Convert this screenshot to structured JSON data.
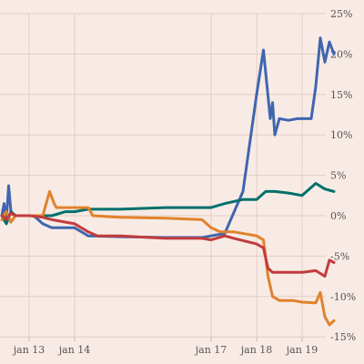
{
  "chart_data": {
    "type": "line",
    "title": "",
    "xlabel": "",
    "ylabel": "",
    "ylim": [
      -0.15,
      0.25
    ],
    "grid": true,
    "x_ticks": [
      {
        "t": 13.0,
        "label": "jan 13"
      },
      {
        "t": 14.0,
        "label": "jan 14"
      },
      {
        "t": 17.0,
        "label": "jan 17"
      },
      {
        "t": 18.0,
        "label": "jan 18"
      },
      {
        "t": 19.0,
        "label": "jan 19"
      }
    ],
    "y_ticks": [
      {
        "v": 0.25,
        "label": "25%"
      },
      {
        "v": 0.2,
        "label": "20%"
      },
      {
        "v": 0.15,
        "label": "15%"
      },
      {
        "v": 0.1,
        "label": "10%"
      },
      {
        "v": 0.05,
        "label": "5%"
      },
      {
        "v": 0.0,
        "label": "0%"
      },
      {
        "v": -0.05,
        "label": "-5%"
      },
      {
        "v": -0.1,
        "label": "-10%"
      },
      {
        "v": -0.15,
        "label": "-15%"
      }
    ],
    "series": [
      {
        "color": "#3f66b0",
        "points": [
          [
            12.4,
            0.0
          ],
          [
            12.45,
            0.015
          ],
          [
            12.5,
            -0.005
          ],
          [
            12.55,
            0.037
          ],
          [
            12.6,
            0.005
          ],
          [
            12.7,
            0.0
          ],
          [
            13.0,
            0.0
          ],
          [
            13.1,
            0.0
          ],
          [
            13.3,
            -0.01
          ],
          [
            13.5,
            -0.015
          ],
          [
            13.8,
            -0.015
          ],
          [
            14.0,
            -0.015
          ],
          [
            14.3,
            -0.025
          ],
          [
            15.0,
            -0.026
          ],
          [
            16.0,
            -0.027
          ],
          [
            16.8,
            -0.027
          ],
          [
            17.0,
            -0.025
          ],
          [
            17.3,
            -0.022
          ],
          [
            17.7,
            0.03
          ],
          [
            18.0,
            0.15
          ],
          [
            18.15,
            0.205
          ],
          [
            18.3,
            0.12
          ],
          [
            18.35,
            0.14
          ],
          [
            18.4,
            0.1
          ],
          [
            18.5,
            0.12
          ],
          [
            18.7,
            0.118
          ],
          [
            18.9,
            0.12
          ],
          [
            19.0,
            0.12
          ],
          [
            19.2,
            0.12
          ],
          [
            19.3,
            0.16
          ],
          [
            19.4,
            0.22
          ],
          [
            19.5,
            0.19
          ],
          [
            19.6,
            0.215
          ],
          [
            19.7,
            0.2
          ]
        ]
      },
      {
        "color": "#00706b",
        "points": [
          [
            12.4,
            0.0
          ],
          [
            12.5,
            -0.01
          ],
          [
            12.6,
            0.005
          ],
          [
            12.7,
            0.0
          ],
          [
            13.0,
            0.0
          ],
          [
            13.3,
            0.0
          ],
          [
            13.5,
            0.0
          ],
          [
            13.8,
            0.005
          ],
          [
            14.0,
            0.005
          ],
          [
            14.3,
            0.008
          ],
          [
            15.0,
            0.008
          ],
          [
            16.0,
            0.01
          ],
          [
            16.8,
            0.01
          ],
          [
            17.0,
            0.01
          ],
          [
            17.3,
            0.015
          ],
          [
            17.7,
            0.02
          ],
          [
            18.0,
            0.02
          ],
          [
            18.2,
            0.03
          ],
          [
            18.4,
            0.03
          ],
          [
            18.7,
            0.028
          ],
          [
            19.0,
            0.025
          ],
          [
            19.3,
            0.04
          ],
          [
            19.5,
            0.033
          ],
          [
            19.7,
            0.03
          ]
        ]
      },
      {
        "color": "#e0822c",
        "points": [
          [
            12.4,
            -0.005
          ],
          [
            12.5,
            0.005
          ],
          [
            12.6,
            -0.008
          ],
          [
            12.7,
            0.0
          ],
          [
            13.0,
            0.0
          ],
          [
            13.3,
            0.0
          ],
          [
            13.45,
            0.03
          ],
          [
            13.55,
            0.015
          ],
          [
            13.6,
            0.01
          ],
          [
            14.0,
            0.01
          ],
          [
            14.3,
            0.01
          ],
          [
            14.4,
            0.0
          ],
          [
            15.0,
            -0.002
          ],
          [
            16.0,
            -0.003
          ],
          [
            16.8,
            -0.005
          ],
          [
            17.0,
            -0.015
          ],
          [
            17.2,
            -0.02
          ],
          [
            17.5,
            -0.02
          ],
          [
            18.0,
            -0.025
          ],
          [
            18.15,
            -0.03
          ],
          [
            18.25,
            -0.075
          ],
          [
            18.35,
            -0.1
          ],
          [
            18.5,
            -0.105
          ],
          [
            18.8,
            -0.105
          ],
          [
            19.0,
            -0.107
          ],
          [
            19.3,
            -0.108
          ],
          [
            19.4,
            -0.095
          ],
          [
            19.5,
            -0.125
          ],
          [
            19.6,
            -0.135
          ],
          [
            19.7,
            -0.13
          ]
        ]
      },
      {
        "color": "#c23c3c",
        "points": [
          [
            12.4,
            0.0
          ],
          [
            12.5,
            -0.005
          ],
          [
            12.6,
            0.003
          ],
          [
            12.7,
            0.0
          ],
          [
            13.0,
            0.0
          ],
          [
            13.3,
            -0.002
          ],
          [
            13.5,
            -0.005
          ],
          [
            13.8,
            -0.008
          ],
          [
            14.0,
            -0.01
          ],
          [
            14.3,
            -0.02
          ],
          [
            14.5,
            -0.025
          ],
          [
            15.0,
            -0.025
          ],
          [
            16.0,
            -0.028
          ],
          [
            16.8,
            -0.028
          ],
          [
            17.0,
            -0.03
          ],
          [
            17.3,
            -0.025
          ],
          [
            17.5,
            -0.028
          ],
          [
            18.0,
            -0.035
          ],
          [
            18.15,
            -0.04
          ],
          [
            18.25,
            -0.065
          ],
          [
            18.35,
            -0.07
          ],
          [
            18.6,
            -0.07
          ],
          [
            19.0,
            -0.07
          ],
          [
            19.3,
            -0.068
          ],
          [
            19.5,
            -0.075
          ],
          [
            19.6,
            -0.055
          ],
          [
            19.7,
            -0.058
          ]
        ]
      }
    ]
  }
}
